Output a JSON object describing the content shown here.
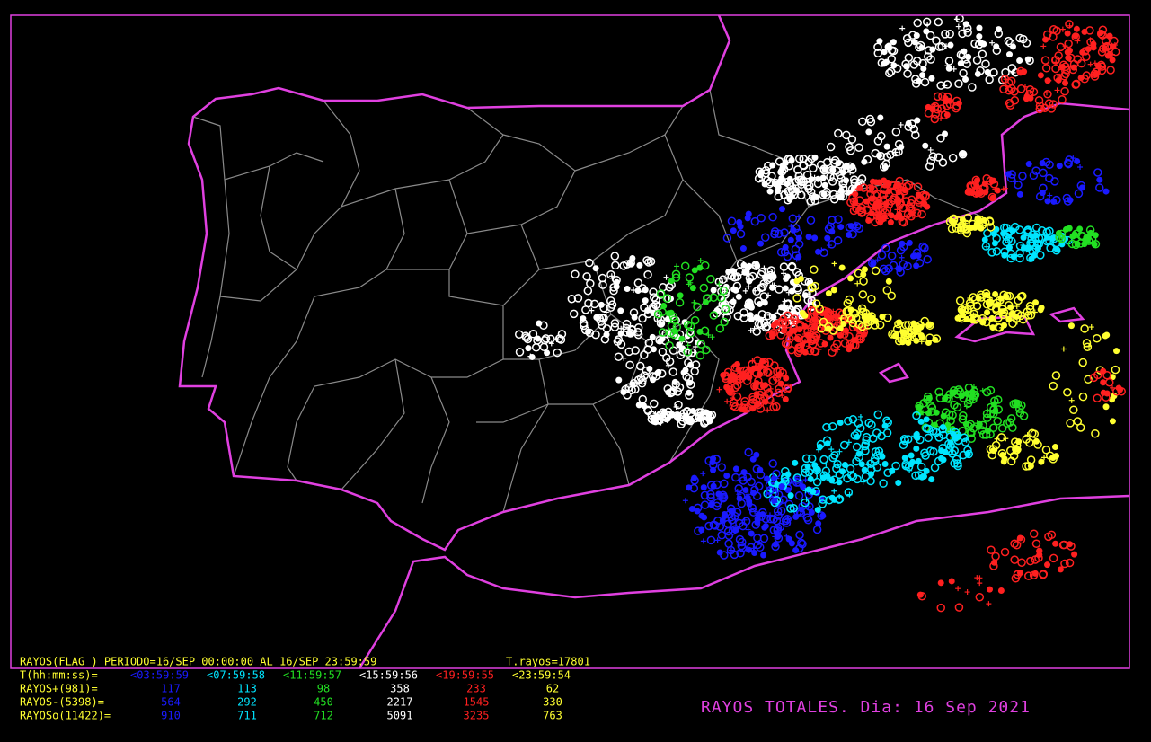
{
  "header": {
    "period": "RAYOS(FLAG ) PERIODO=16/SEP 00:00:00 AL 16/SEP 23:59:59",
    "total": "T.rayos=17801"
  },
  "legend": {
    "label": "T(hh:mm:ss)=",
    "intervals": [
      "<03:59:59",
      "<07:59:58",
      "<11:59:57",
      "<15:59:56",
      "<19:59:55",
      "<23:59:54"
    ]
  },
  "table": {
    "rows": [
      {
        "label": "RAYOS+(981)=",
        "values": [
          117,
          113,
          98,
          358,
          233,
          62
        ]
      },
      {
        "label": "RAYOS-(5398)=",
        "values": [
          564,
          292,
          450,
          2217,
          1545,
          330
        ]
      },
      {
        "label": "RAYOSo(11422)=",
        "values": [
          910,
          711,
          712,
          5091,
          3235,
          763
        ]
      }
    ]
  },
  "title": "RAYOS TOTALES. Dia: 16 Sep 2021"
}
